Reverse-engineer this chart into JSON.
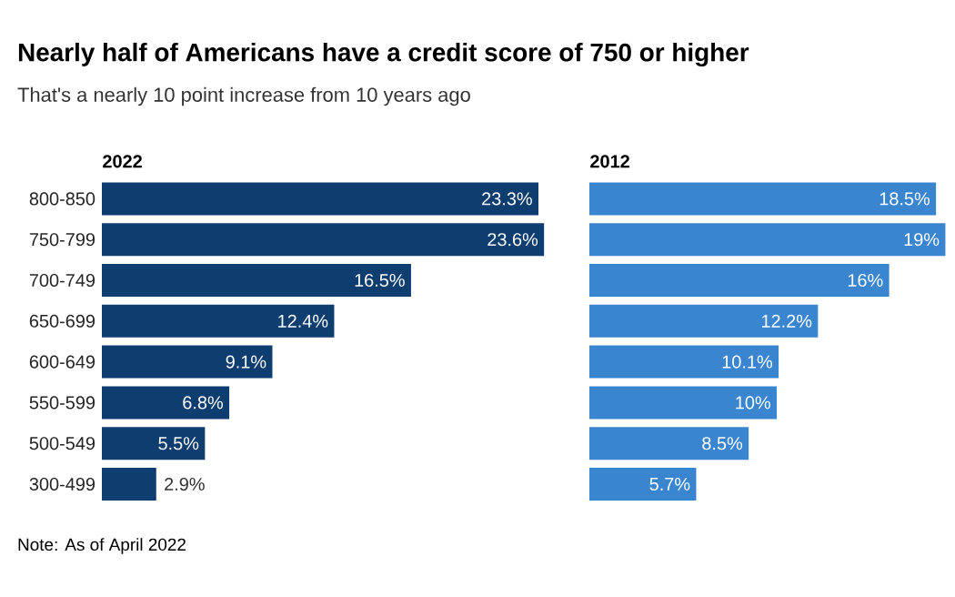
{
  "chart_data": [
    {
      "type": "bar",
      "orientation": "horizontal",
      "title": "Nearly half of Americans have a credit score of 750 or higher",
      "subtitle": "That's a nearly 10 point increase from 10 years ago",
      "annotations": [
        "Note: As of April 2022"
      ],
      "categories": [
        "800-850",
        "750-799",
        "700-749",
        "650-699",
        "600-649",
        "550-599",
        "500-549",
        "300-499"
      ],
      "series": [
        {
          "name": "2022",
          "color": "#0e3d6f",
          "values": [
            23.3,
            23.6,
            16.5,
            12.4,
            9.1,
            6.8,
            5.5,
            2.9
          ],
          "value_labels": [
            "23.3%",
            "23.6%",
            "16.5%",
            "12.4%",
            "9.1%",
            "6.8%",
            "5.5%",
            "2.9%"
          ]
        }
      ]
    },
    {
      "type": "bar",
      "orientation": "horizontal",
      "categories": [
        null,
        null,
        null,
        null,
        null,
        null,
        null,
        null
      ],
      "series": [
        {
          "name": "2012",
          "color": "#3a85cf",
          "values": [
            18.5,
            19,
            16,
            12.2,
            10.1,
            10,
            8.5,
            5.7
          ],
          "value_labels": [
            "18.5%",
            "19%",
            "16%",
            "12.2%",
            "10.1%",
            "10%",
            "8.5%",
            "5.7%"
          ]
        }
      ]
    }
  ]
}
